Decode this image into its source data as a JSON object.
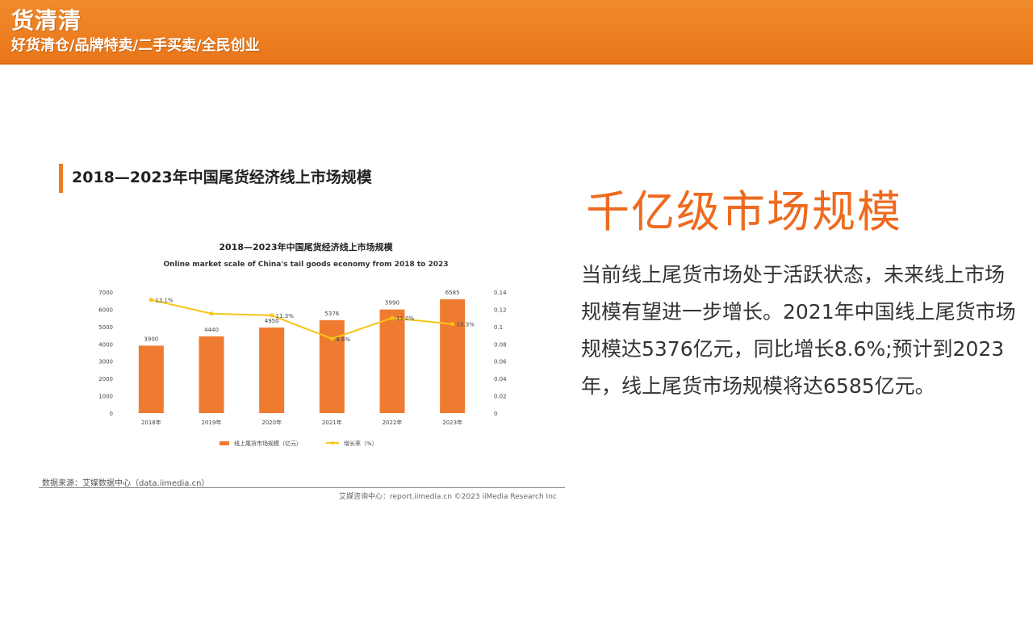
{
  "banner": {
    "brand": "货清清",
    "tagline": "好货清仓/品牌特卖/二手买卖/全民创业"
  },
  "figure": {
    "heading": "2018—2023年中国尾货经济线上市场规模",
    "source": "数据来源：艾媒数据中心（data.iimedia.cn）",
    "copyright": "艾媒咨询中心：report.iimedia.cn    ©2023  iiMedia Research Inc"
  },
  "chart_data": {
    "type": "bar",
    "title": "2018—2023年中国尾货经济线上市场规模",
    "subtitle": "Online market scale of China's tail goods economy from 2018 to 2023",
    "categories": [
      "2018年",
      "2019年",
      "2020年",
      "2021年",
      "2022年",
      "2023年"
    ],
    "series": [
      {
        "name": "线上尾货市场规模（亿元）",
        "type": "bar",
        "axis": "left",
        "values": [
          3900,
          4440,
          4950,
          5376,
          5990,
          6585
        ],
        "labels": [
          "3900",
          "4440",
          "4950",
          "5376",
          "5990",
          "6585"
        ]
      },
      {
        "name": "增长率（%）",
        "type": "line",
        "axis": "right",
        "values": [
          0.131,
          0.115,
          0.113,
          0.086,
          0.11,
          0.103
        ],
        "labels": [
          "13.1%",
          "",
          "11.3%",
          "8.6%",
          "11.0%",
          "10.3%"
        ]
      }
    ],
    "yleft": {
      "min": 0,
      "max": 7000,
      "ticks": [
        "0",
        "1000",
        "2000",
        "3000",
        "4000",
        "5000",
        "6000",
        "7000"
      ]
    },
    "yright": {
      "min": 0,
      "max": 0.14,
      "ticks": [
        "0",
        "0.02",
        "0.04",
        "0.06",
        "0.08",
        "0.1",
        "0.12",
        "0.14"
      ]
    },
    "legend_position": "bottom",
    "grid": false,
    "colors": {
      "bar": "#ef7b30",
      "line": "#f5c518"
    }
  },
  "right_panel": {
    "headline": "千亿级市场规模",
    "body": "当前线上尾货市场处于活跃状态，未来线上市场规模有望进一步增长。2021年中国线上尾货市场规模达5376亿元，同比增长8.6%;预计到2023年，线上尾货市场规模将达6585亿元。"
  }
}
